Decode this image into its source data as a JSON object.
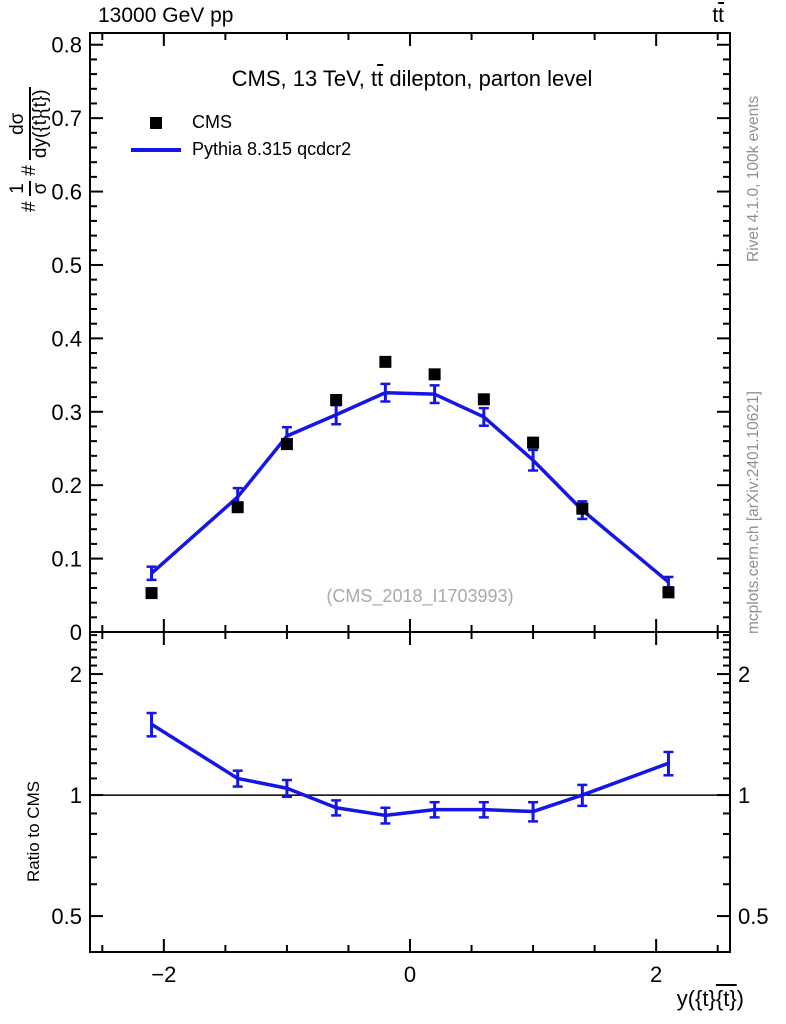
{
  "header": {
    "beam_label": "13000 GeV pp",
    "process_pre": "t",
    "process_bar": "t"
  },
  "title": {
    "pre": "CMS, 13 TeV, t",
    "bar": "t",
    "post": " dilepton, parton level"
  },
  "legend": [
    {
      "label": "CMS",
      "marker": "square",
      "color": "#000000"
    },
    {
      "label": "Pythia 8.315 qcdcr2",
      "marker": "line",
      "color": "#1515e6"
    }
  ],
  "ylabel": {
    "hash1": "#",
    "num1": "1",
    "den1": "σ",
    "hash2": "#",
    "num2": "dσ",
    "den2_pre": "dy({t}",
    "den2_bar": "{t}",
    "den2_post": ")"
  },
  "xlabel": {
    "pre": "y({t}",
    "bar": "{t}",
    "post": ")"
  },
  "ratio_ylabel": "Ratio to CMS",
  "watermark": "(CMS_2018_I1703993)",
  "side_notes": {
    "top": "Rivet 4.1.0,  100k events",
    "bottom": "mcplots.cern.ch [arXiv:2401.10621]"
  },
  "colors": {
    "cms": "#000000",
    "pythia": "#1515e6",
    "gray_text": "#8f8f8f",
    "watermark": "#a9a9a9",
    "ref_line": "#000000"
  },
  "chart_data": [
    {
      "type": "line",
      "panel": "main",
      "title": "CMS, 13 TeV, ttbar dilepton, parton level",
      "xlabel": "y({t}{tbar})",
      "ylabel": "# 1/σ # dσ/dy({t}{tbar})",
      "xlim": [
        -2.6,
        2.6
      ],
      "ylim": [
        0,
        0.816
      ],
      "xticks": {
        "major": [
          -2,
          0,
          2
        ],
        "labels": [
          "−2",
          "0",
          "2"
        ],
        "minor": [
          -2.5,
          -1.5,
          -1,
          -0.5,
          0.5,
          1,
          1.5,
          2.5
        ],
        "show_labels": false
      },
      "yticks": {
        "major": [
          0,
          0.1,
          0.2,
          0.3,
          0.4,
          0.5,
          0.6,
          0.7,
          0.8
        ],
        "labels": [
          "0",
          "0.1",
          "0.2",
          "0.3",
          "0.4",
          "0.5",
          "0.6",
          "0.7",
          "0.8"
        ],
        "minor_step": 0.02,
        "mirror_labels": false
      },
      "series": [
        {
          "name": "CMS",
          "type": "scatter",
          "marker": "square",
          "color": "#000000",
          "x": [
            -2.1,
            -1.4,
            -1.0,
            -0.6,
            -0.2,
            0.2,
            0.6,
            1.0,
            1.4,
            2.1
          ],
          "y": [
            0.053,
            0.17,
            0.256,
            0.316,
            0.368,
            0.351,
            0.317,
            0.258,
            0.168,
            0.054
          ]
        },
        {
          "name": "Pythia 8.315 qcdcr2",
          "type": "line",
          "color": "#1515e6",
          "x": [
            -2.1,
            -1.4,
            -1.0,
            -0.6,
            -0.2,
            0.2,
            0.6,
            1.0,
            1.4,
            2.1
          ],
          "y": [
            0.08,
            0.184,
            0.267,
            0.296,
            0.326,
            0.324,
            0.293,
            0.234,
            0.166,
            0.068
          ],
          "yerr": [
            0.009,
            0.012,
            0.012,
            0.013,
            0.012,
            0.012,
            0.012,
            0.014,
            0.012,
            0.007
          ]
        }
      ]
    },
    {
      "type": "line",
      "panel": "ratio",
      "ylabel": "Ratio to CMS",
      "yscale": "log",
      "xlim": [
        -2.6,
        2.6
      ],
      "ylim": [
        0.407,
        2.545
      ],
      "xticks": {
        "major": [
          -2,
          0,
          2
        ],
        "labels": [
          "−2",
          "0",
          "2"
        ],
        "minor": [
          -2.5,
          -1.5,
          -1,
          -0.5,
          0.5,
          1,
          1.5,
          2.5
        ],
        "show_labels": true
      },
      "yticks": {
        "major": [
          0.5,
          1,
          2
        ],
        "labels": [
          "0.5",
          "1",
          "2"
        ],
        "minor": [
          0.6,
          0.7,
          0.8,
          0.9,
          1.1,
          1.2,
          1.3,
          1.4,
          1.5,
          1.6,
          1.7,
          1.8,
          1.9,
          2.1,
          2.2,
          2.3,
          2.4,
          2.5
        ],
        "mirror_labels": true
      },
      "refline": 1,
      "series": [
        {
          "name": "Pythia/CMS",
          "type": "line",
          "color": "#1515e6",
          "x": [
            -2.1,
            -1.4,
            -1.0,
            -0.6,
            -0.2,
            0.2,
            0.6,
            1.0,
            1.4,
            2.1
          ],
          "y": [
            1.5,
            1.1,
            1.04,
            0.93,
            0.89,
            0.92,
            0.92,
            0.91,
            1.0,
            1.2
          ],
          "yerr": [
            0.1,
            0.05,
            0.05,
            0.04,
            0.04,
            0.04,
            0.04,
            0.05,
            0.06,
            0.08
          ]
        }
      ]
    }
  ]
}
